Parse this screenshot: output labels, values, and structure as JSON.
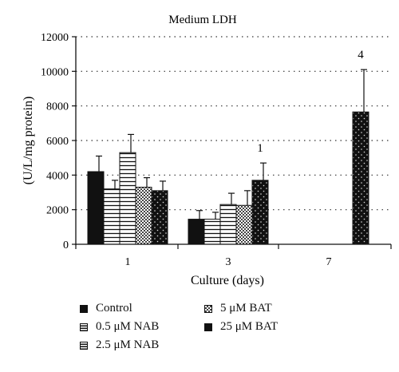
{
  "chart_data": {
    "type": "bar",
    "title": "Medium LDH",
    "xlabel": "Culture (days)",
    "ylabel": "(U/L/mg protein)",
    "ylim": [
      0,
      12000
    ],
    "yticks": [
      "0",
      "2000",
      "4000",
      "6000",
      "8000",
      "10000",
      "12000"
    ],
    "categories": [
      "1",
      "3",
      "7"
    ],
    "grid": "horizontal-dotted",
    "legend_position": "bottom",
    "series": [
      {
        "name": "Control",
        "pattern": "solid",
        "values": [
          4200,
          1450,
          null
        ],
        "errors": [
          900,
          500,
          null
        ]
      },
      {
        "name": "0.5 μM NAB",
        "pattern": "hlines",
        "values": [
          3200,
          1450,
          null
        ],
        "errors": [
          500,
          400,
          null
        ]
      },
      {
        "name": "2.5 μM NAB",
        "pattern": "hlines",
        "values": [
          5300,
          2300,
          null
        ],
        "errors": [
          1050,
          650,
          null
        ]
      },
      {
        "name": "5 μM BAT",
        "pattern": "checker",
        "values": [
          3300,
          2250,
          null
        ],
        "errors": [
          550,
          850,
          null
        ]
      },
      {
        "name": "25 μM BAT",
        "pattern": "dark-dots",
        "values": [
          3100,
          3700,
          7650
        ],
        "errors": [
          550,
          1000,
          2450
        ]
      }
    ],
    "annotations": [
      {
        "category": "3",
        "series": "25 μM BAT",
        "text": "1"
      },
      {
        "category": "7",
        "series": "25 μM BAT",
        "text": "4"
      }
    ],
    "colors": {
      "bar_dark": "#111111",
      "bar_light": "#ffffff",
      "axis": "#111111",
      "grid": "#333333"
    }
  }
}
